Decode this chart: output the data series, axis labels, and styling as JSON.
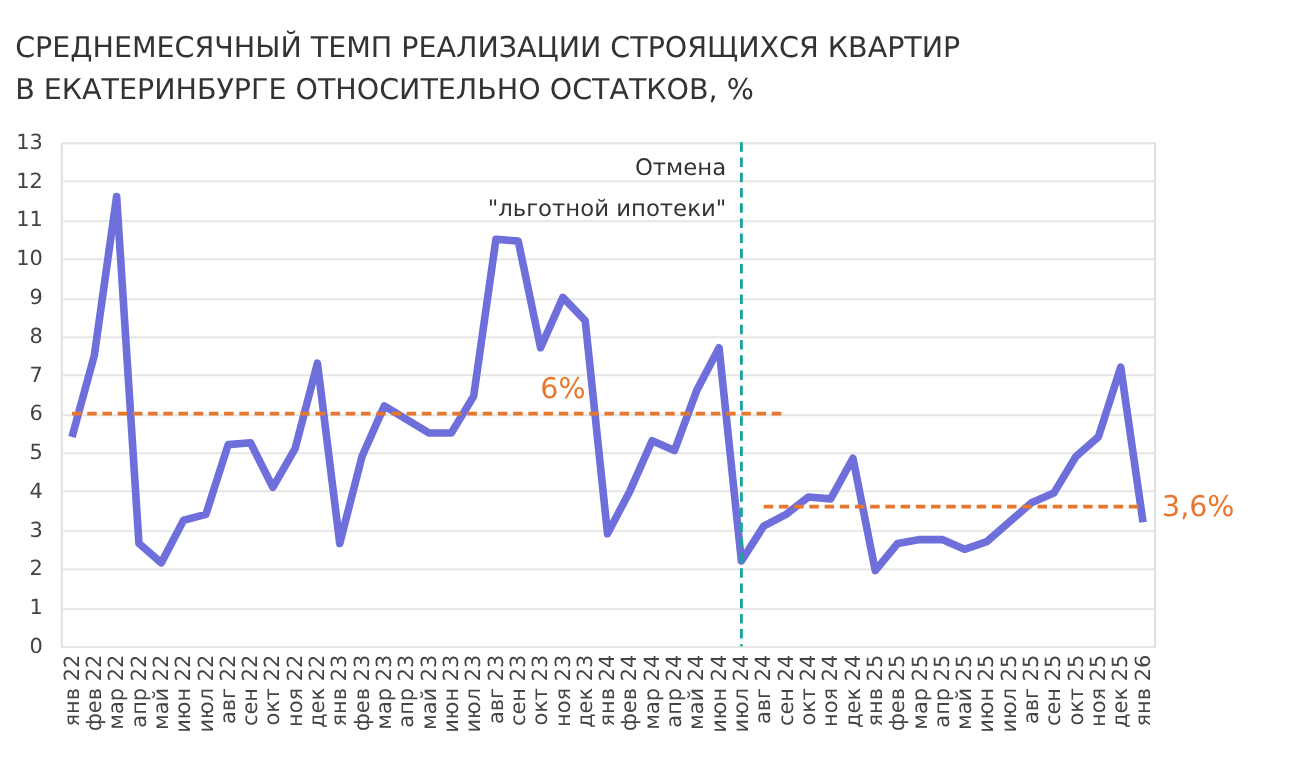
{
  "chart_data": {
    "type": "line",
    "title": "СРЕДНЕМЕСЯЧНЫЙ  ТЕМП РЕАЛИЗАЦИИ СТРОЯЩИХСЯ КВАРТИР\nВ ЕКАТЕРИНБУРГЕ ОТНОСИТЕЛЬНО ОСТАТКОВ, %",
    "categories": [
      "янв 22",
      "фев 22",
      "мар 22",
      "апр 22",
      "май 22",
      "июн 22",
      "июл 22",
      "авг 22",
      "сен 22",
      "окт 22",
      "ноя 22",
      "дек 22",
      "янв 23",
      "фев 23",
      "мар 23",
      "апр 23",
      "май 23",
      "июн 23",
      "июл 23",
      "авг 23",
      "сен 23",
      "окт 23",
      "ноя 23",
      "дек 23",
      "янв 24",
      "фев 24",
      "мар 24",
      "апр 24",
      "май 24",
      "июн 24",
      "июл 24",
      "авг 24",
      "сен 24",
      "окт 24",
      "ноя 24",
      "дек 24",
      "янв 25",
      "фев 25",
      "мар 25",
      "апр 25",
      "май 25",
      "июн 25",
      "июл 25",
      "авг 25",
      "сен 25",
      "окт 25",
      "ноя 25",
      "дек 25",
      "янв 26"
    ],
    "series": [
      {
        "color": "#6f6fdc",
        "line_style": "solid",
        "values": [
          5.4,
          7.5,
          11.6,
          2.65,
          2.15,
          3.25,
          3.4,
          5.2,
          5.25,
          4.1,
          5.1,
          7.3,
          2.65,
          4.9,
          6.2,
          5.85,
          5.5,
          5.5,
          6.45,
          10.5,
          10.45,
          7.7,
          9.0,
          8.4,
          2.9,
          4.0,
          5.3,
          5.05,
          6.6,
          7.7,
          2.2,
          3.1,
          3.4,
          3.85,
          3.8,
          4.85,
          1.95,
          2.65,
          2.75,
          2.75,
          2.5,
          2.7,
          3.2,
          3.7,
          3.95,
          4.9,
          5.4,
          7.2,
          3.2
        ]
      },
      {
        "type": "line",
        "color": "#e8772e",
        "line_style": "dashed",
        "x": [
          "янв 22",
          "сен 24"
        ],
        "values": [
          6,
          6
        ]
      },
      {
        "type": "line",
        "color": "#e8772e",
        "line_style": "dashed",
        "x": [
          "авг 24",
          "янв 26"
        ],
        "values": [
          3.6,
          3.6
        ]
      }
    ],
    "ref_lines": [
      {
        "axis": "x",
        "value": "июл 24",
        "label": "Отмена\n\"льготной ипотеки\"",
        "color": "#1aa39a",
        "line_style": "dashed"
      }
    ],
    "annotations": [
      {
        "text": "6%",
        "x": "ноя 23",
        "y": 6
      },
      {
        "text": "3,6%",
        "x": "янв 26",
        "y": 3.6
      }
    ],
    "ylim": [
      0,
      13
    ],
    "yticks": [
      0,
      1,
      2,
      3,
      4,
      5,
      6,
      7,
      8,
      9,
      10,
      11,
      12,
      13
    ],
    "grid": "y",
    "marker": "none"
  }
}
